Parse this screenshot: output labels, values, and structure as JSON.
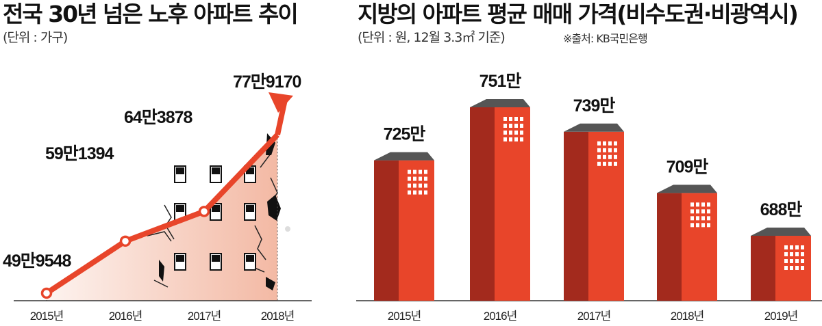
{
  "chart_data": [
    {
      "type": "line",
      "title": "전국 30년 넘은 노후 아파트 추이",
      "subtitle": "(단위 : 가구)",
      "categories": [
        "2015년",
        "2016년",
        "2017년",
        "2018년"
      ],
      "values": [
        499548,
        591394,
        643878,
        779170
      ],
      "data_labels": [
        "49만9548",
        "59만1394",
        "64만3878",
        "77만9170"
      ],
      "ylim": [
        450000,
        800000
      ],
      "grid": false,
      "colors": {
        "line": "#e8452a",
        "axis": "#333333"
      }
    },
    {
      "type": "bar",
      "title": "지방의 아파트 평균 매매 가격(비수도권·비광역시)",
      "subtitle": "(단위 : 원, 12월 3.3㎡ 기준)",
      "source": "※출처: KB국민은행",
      "categories": [
        "2015년",
        "2016년",
        "2017년",
        "2018년",
        "2019년"
      ],
      "values": [
        725,
        751,
        739,
        709,
        688
      ],
      "data_labels": [
        "725만",
        "751만",
        "739만",
        "709만",
        "688만"
      ],
      "grid": false,
      "colors": {
        "front": "#e8452a",
        "side": "#a32a1d",
        "roof": "#555555",
        "window": "#ffffff"
      }
    }
  ]
}
